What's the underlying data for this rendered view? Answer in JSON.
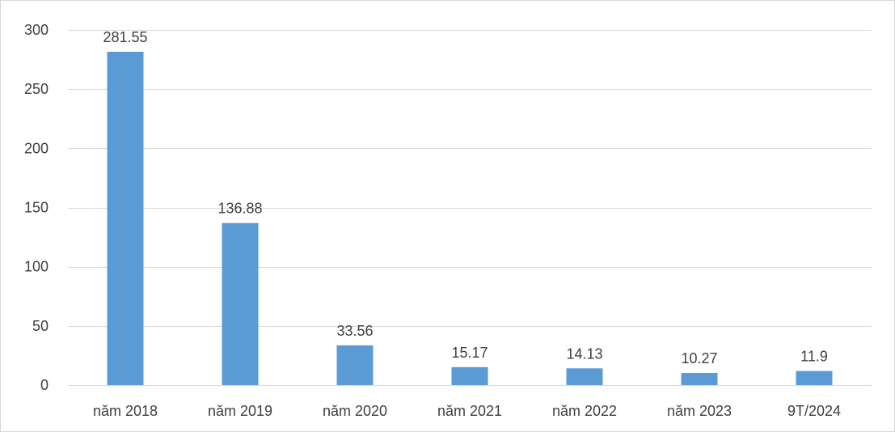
{
  "chart_data": {
    "type": "bar",
    "title": "",
    "xlabel": "",
    "ylabel": "",
    "categories": [
      "năm 2018",
      "năm 2019",
      "năm 2020",
      "năm 2021",
      "năm 2022",
      "năm 2023",
      "9T/2024"
    ],
    "values": [
      281.55,
      136.88,
      33.56,
      15.17,
      14.13,
      10.27,
      11.9
    ],
    "data_labels": [
      "281.55",
      "136.88",
      "33.56",
      "15.17",
      "14.13",
      "10.27",
      "11.9"
    ],
    "ylim": [
      0,
      300
    ],
    "yticks": [
      0,
      50,
      100,
      150,
      200,
      250,
      300
    ],
    "ytick_labels": [
      "0",
      "50",
      "100",
      "150",
      "200",
      "250",
      "300"
    ],
    "grid": true,
    "legend": "none",
    "colors": {
      "bar": "#5B9BD5",
      "grid": "#d9d9d9",
      "text": "#404040"
    }
  }
}
